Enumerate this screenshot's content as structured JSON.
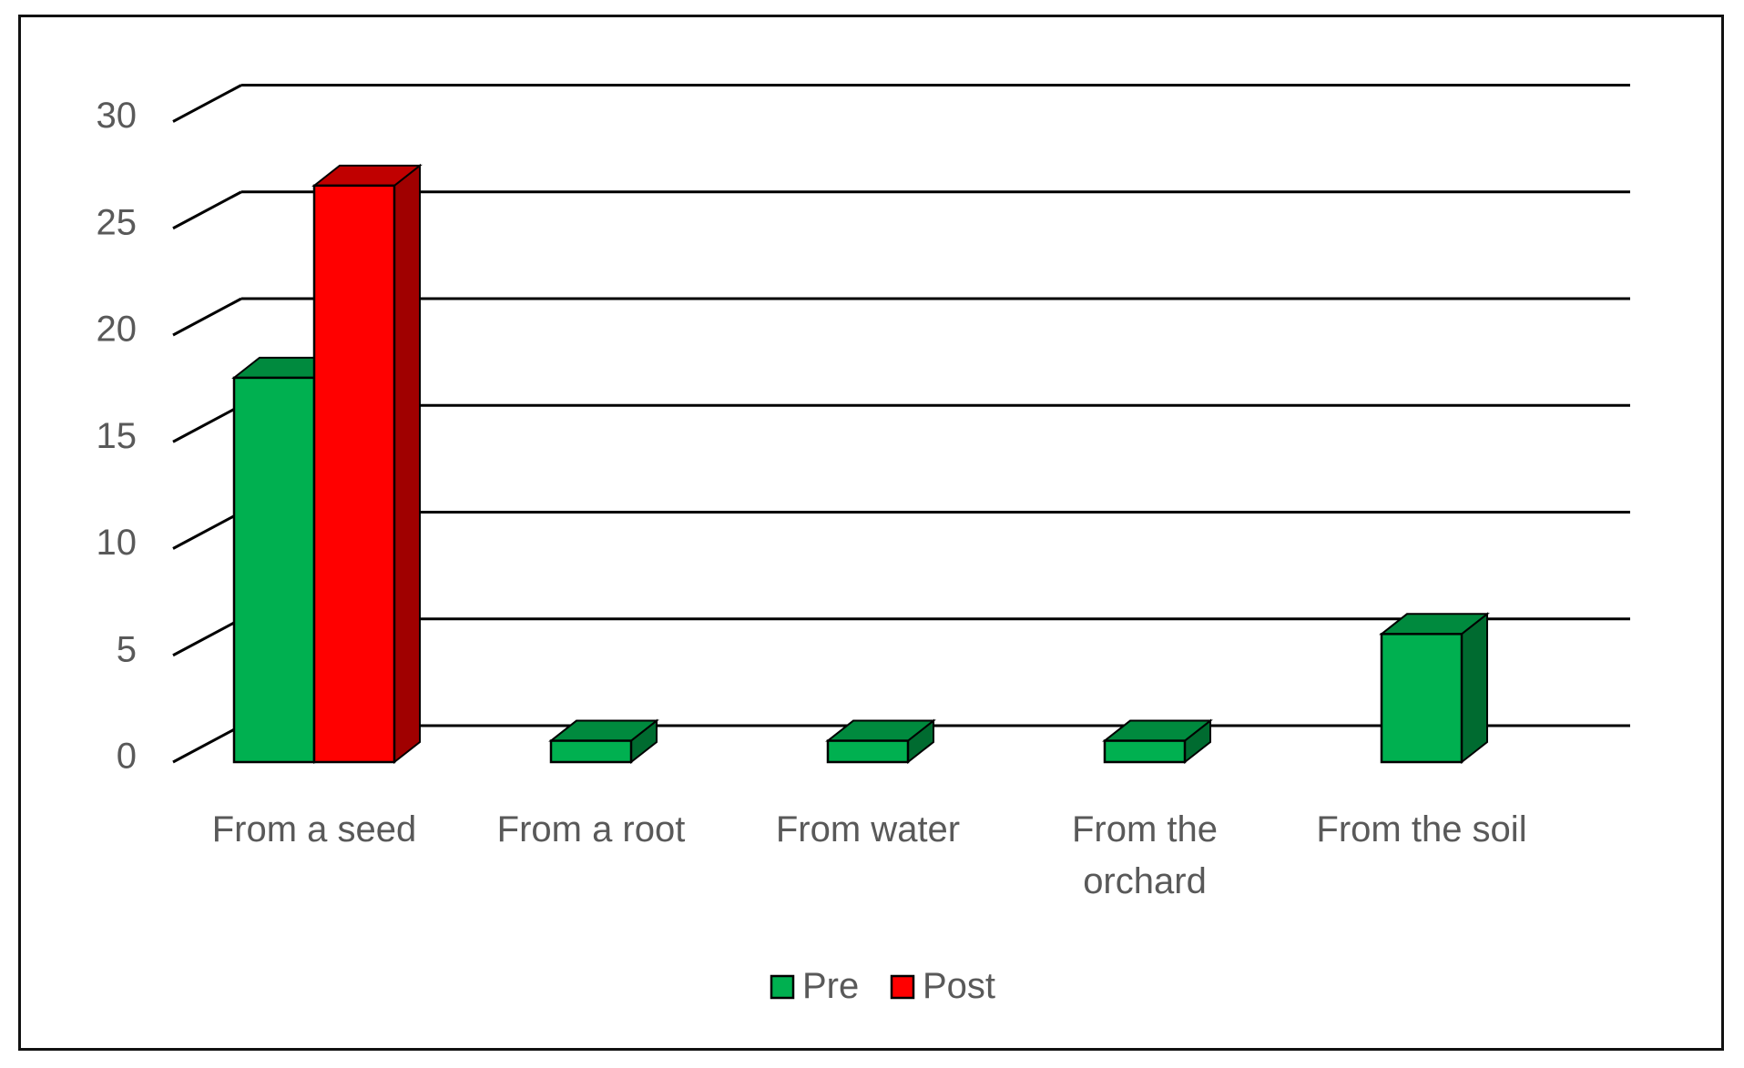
{
  "chart_data": {
    "type": "bar",
    "style": "3d-clustered-column",
    "categories": [
      "From a seed",
      "From a root",
      "From water",
      "From the orchard",
      "From the soil"
    ],
    "category_lines": [
      [
        "From a seed"
      ],
      [
        "From a root"
      ],
      [
        "From water"
      ],
      [
        "From the",
        "orchard"
      ],
      [
        "From the soil"
      ]
    ],
    "series": [
      {
        "name": "Pre",
        "values": [
          18,
          1,
          1,
          1,
          6
        ],
        "color": "#00b050",
        "side_color": "#006b30",
        "top_color": "#008a3e"
      },
      {
        "name": "Post",
        "values": [
          27,
          0,
          0,
          0,
          0
        ],
        "color": "#ff0000",
        "side_color": "#a00000",
        "top_color": "#c00000"
      }
    ],
    "yticks": [
      "0",
      "5",
      "10",
      "15",
      "20",
      "25",
      "30"
    ],
    "ylim": [
      0,
      30
    ],
    "grid": true,
    "legend": {
      "position": "bottom",
      "entries": [
        "Pre",
        "Post"
      ]
    },
    "title": "",
    "xlabel": "",
    "ylabel": ""
  }
}
